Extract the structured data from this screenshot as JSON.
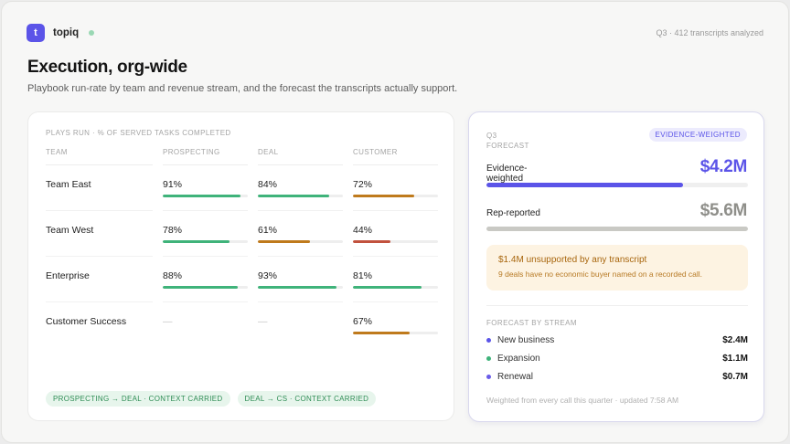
{
  "app": {
    "logo_letter": "t",
    "name": "topiq"
  },
  "meta": "Q3 · 412 transcripts analyzed",
  "page": {
    "title": "Execution, org-wide",
    "subtitle": "Playbook run-rate by team and revenue stream, and the forecast the transcripts actually support."
  },
  "plays": {
    "label": "PLAYS RUN · % OF SERVED TASKS COMPLETED",
    "columns": [
      "TEAM",
      "PROSPECTING",
      "DEAL",
      "CUSTOMER"
    ],
    "rows": [
      {
        "team": "Team East",
        "cells": [
          {
            "text": "91%",
            "value": 0.91,
            "color": "#3fb37a"
          },
          {
            "text": "84%",
            "value": 0.84,
            "color": "#3fb37a"
          },
          {
            "text": "72%",
            "value": 0.72,
            "color": "#bf7a1c"
          }
        ]
      },
      {
        "team": "Team West",
        "cells": [
          {
            "text": "78%",
            "value": 0.78,
            "color": "#3fb37a"
          },
          {
            "text": "61%",
            "value": 0.61,
            "color": "#bf7a1c"
          },
          {
            "text": "44%",
            "value": 0.44,
            "color": "#c2523e"
          }
        ]
      },
      {
        "team": "Enterprise",
        "cells": [
          {
            "text": "88%",
            "value": 0.88,
            "color": "#3fb37a"
          },
          {
            "text": "93%",
            "value": 0.93,
            "color": "#3fb37a"
          },
          {
            "text": "81%",
            "value": 0.81,
            "color": "#3fb37a"
          }
        ]
      },
      {
        "team": "Customer Success",
        "cells": [
          {
            "text": "—",
            "value": null,
            "color": null
          },
          {
            "text": "—",
            "value": null,
            "color": null
          },
          {
            "text": "67%",
            "value": 0.67,
            "color": "#bf7a1c"
          }
        ]
      }
    ],
    "chips": [
      "PROSPECTING → DEAL · CONTEXT CARRIED",
      "DEAL → CS · CONTEXT CARRIED"
    ]
  },
  "forecast": {
    "label_line1": "Q3",
    "label_line2": "FORECAST",
    "badge": "EVIDENCE-WEIGHTED",
    "evidence": {
      "label": "Evidence-weighted",
      "value": "$4.2M",
      "fraction": 0.75,
      "color": "#5b54e8"
    },
    "reported": {
      "label": "Rep-reported",
      "value": "$5.6M",
      "fraction": 1.0,
      "color": "#c9c9c4"
    },
    "alert": {
      "title": "$1.4M unsupported by any transcript",
      "subtitle": "9 deals have no economic buyer named on a recorded call."
    },
    "streams_label": "FORECAST BY STREAM",
    "streams": [
      {
        "name": "New business",
        "value": "$2.4M",
        "color": "#5b54e8"
      },
      {
        "name": "Expansion",
        "value": "$1.1M",
        "color": "#3fb37a"
      },
      {
        "name": "Renewal",
        "value": "$0.7M",
        "color": "#6a5ce8"
      }
    ],
    "footnote": "Weighted from every call this quarter · updated 7:58 AM"
  },
  "colors": {
    "accent": "#5b54e8",
    "good": "#3fb37a",
    "warn": "#bf7a1c",
    "bad": "#c2523e",
    "muted_bar": "#c9c9c4"
  }
}
